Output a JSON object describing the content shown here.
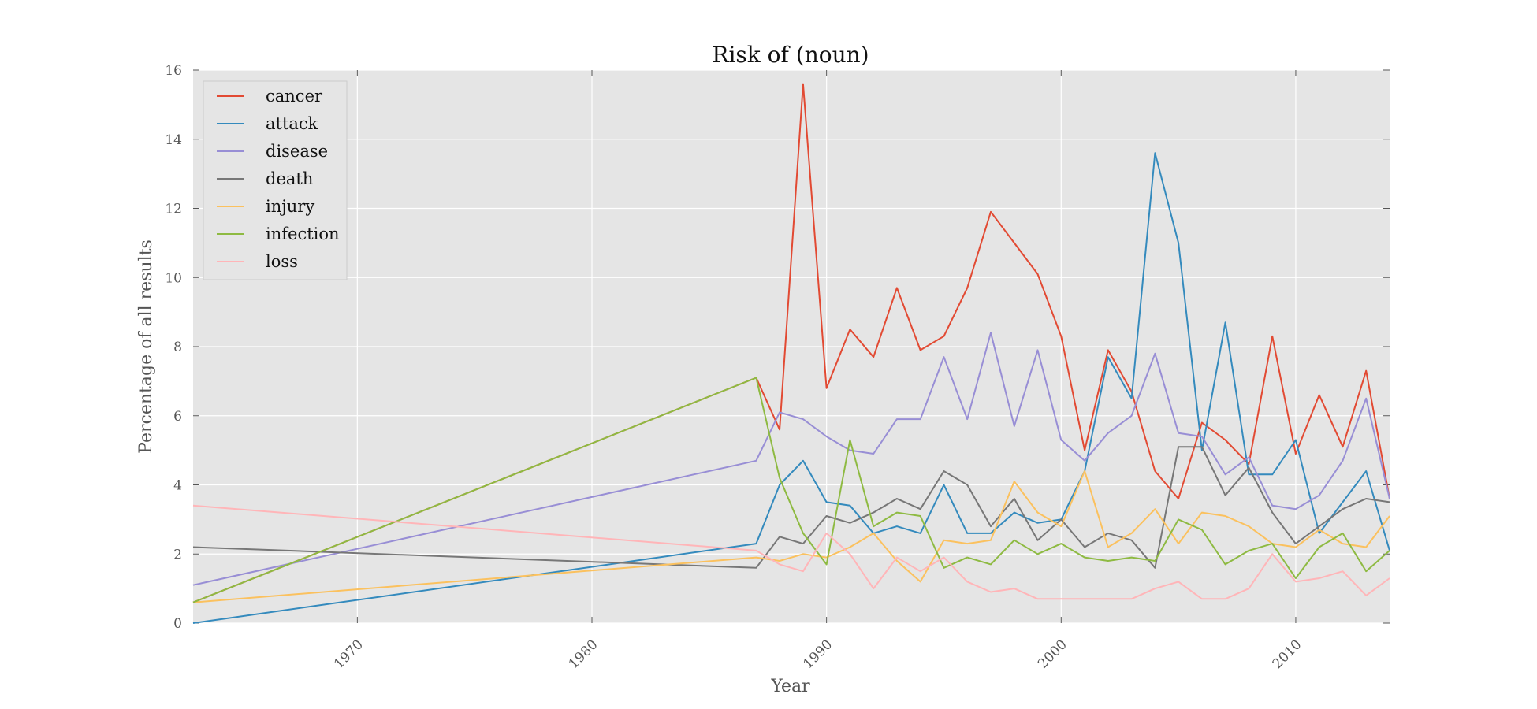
{
  "chart_data": {
    "type": "line",
    "title": "Risk of (noun)",
    "xlabel": "Year",
    "ylabel": "Percentage of all results",
    "xlim": [
      1963,
      2014
    ],
    "ylim": [
      0,
      16
    ],
    "x_ticks": [
      1970,
      1980,
      1990,
      2000,
      2010
    ],
    "y_ticks": [
      0,
      2,
      4,
      6,
      8,
      10,
      12,
      14,
      16
    ],
    "grid": true,
    "legend_position": "top-left",
    "x": [
      1963,
      1987,
      1988,
      1989,
      1990,
      1991,
      1992,
      1993,
      1994,
      1995,
      1996,
      1997,
      1998,
      1999,
      2000,
      2001,
      2002,
      2003,
      2004,
      2005,
      2006,
      2007,
      2008,
      2009,
      2010,
      2011,
      2012,
      2013,
      2014
    ],
    "series": [
      {
        "name": "cancer",
        "color": "#E24A33",
        "values": [
          0.6,
          7.1,
          5.6,
          15.6,
          6.8,
          8.5,
          7.7,
          9.7,
          7.9,
          8.3,
          9.7,
          11.9,
          11.0,
          10.1,
          8.3,
          5.0,
          7.9,
          6.7,
          4.4,
          3.6,
          5.8,
          5.3,
          4.6,
          8.3,
          4.9,
          6.6,
          5.1,
          7.3,
          3.6
        ]
      },
      {
        "name": "attack",
        "color": "#348ABD",
        "values": [
          0.0,
          2.3,
          4.0,
          4.7,
          3.5,
          3.4,
          2.6,
          2.8,
          2.6,
          4.0,
          2.6,
          2.6,
          3.2,
          2.9,
          3.0,
          4.4,
          7.7,
          6.5,
          13.6,
          11.0,
          5.0,
          8.7,
          4.3,
          4.3,
          5.3,
          2.6,
          3.5,
          4.4,
          2.1
        ]
      },
      {
        "name": "disease",
        "color": "#988ED5",
        "values": [
          1.1,
          4.7,
          6.1,
          5.9,
          5.4,
          5.0,
          4.9,
          5.9,
          5.9,
          7.7,
          5.9,
          8.4,
          5.7,
          7.9,
          5.3,
          4.7,
          5.5,
          6.0,
          7.8,
          5.5,
          5.4,
          4.3,
          4.8,
          3.4,
          3.3,
          3.7,
          4.7,
          6.5,
          3.6
        ]
      },
      {
        "name": "death",
        "color": "#777777",
        "values": [
          2.2,
          1.6,
          2.5,
          2.3,
          3.1,
          2.9,
          3.2,
          3.6,
          3.3,
          4.4,
          4.0,
          2.8,
          3.6,
          2.4,
          3.0,
          2.2,
          2.6,
          2.4,
          1.6,
          5.1,
          5.1,
          3.7,
          4.5,
          3.2,
          2.3,
          2.8,
          3.3,
          3.6,
          3.5
        ]
      },
      {
        "name": "injury",
        "color": "#FBC15E",
        "values": [
          0.6,
          1.9,
          1.8,
          2.0,
          1.9,
          2.2,
          2.6,
          1.8,
          1.2,
          2.4,
          2.3,
          2.4,
          4.1,
          3.2,
          2.8,
          4.4,
          2.2,
          2.6,
          3.3,
          2.3,
          3.2,
          3.1,
          2.8,
          2.3,
          2.2,
          2.7,
          2.3,
          2.2,
          3.1
        ]
      },
      {
        "name": "infection",
        "color": "#8EBA42",
        "values": [
          0.6,
          7.1,
          4.2,
          2.6,
          1.7,
          5.3,
          2.8,
          3.2,
          3.1,
          1.6,
          1.9,
          1.7,
          2.4,
          2.0,
          2.3,
          1.9,
          1.8,
          1.9,
          1.8,
          3.0,
          2.7,
          1.7,
          2.1,
          2.3,
          1.3,
          2.2,
          2.6,
          1.5,
          2.1
        ]
      },
      {
        "name": "loss",
        "color": "#FFB5B8",
        "values": [
          3.4,
          2.1,
          1.7,
          1.5,
          2.6,
          2.0,
          1.0,
          1.9,
          1.5,
          1.9,
          1.2,
          0.9,
          1.0,
          0.7,
          0.7,
          0.7,
          0.7,
          0.7,
          1.0,
          1.2,
          0.7,
          0.7,
          1.0,
          2.0,
          1.2,
          1.3,
          1.5,
          0.8,
          1.3
        ]
      }
    ]
  }
}
